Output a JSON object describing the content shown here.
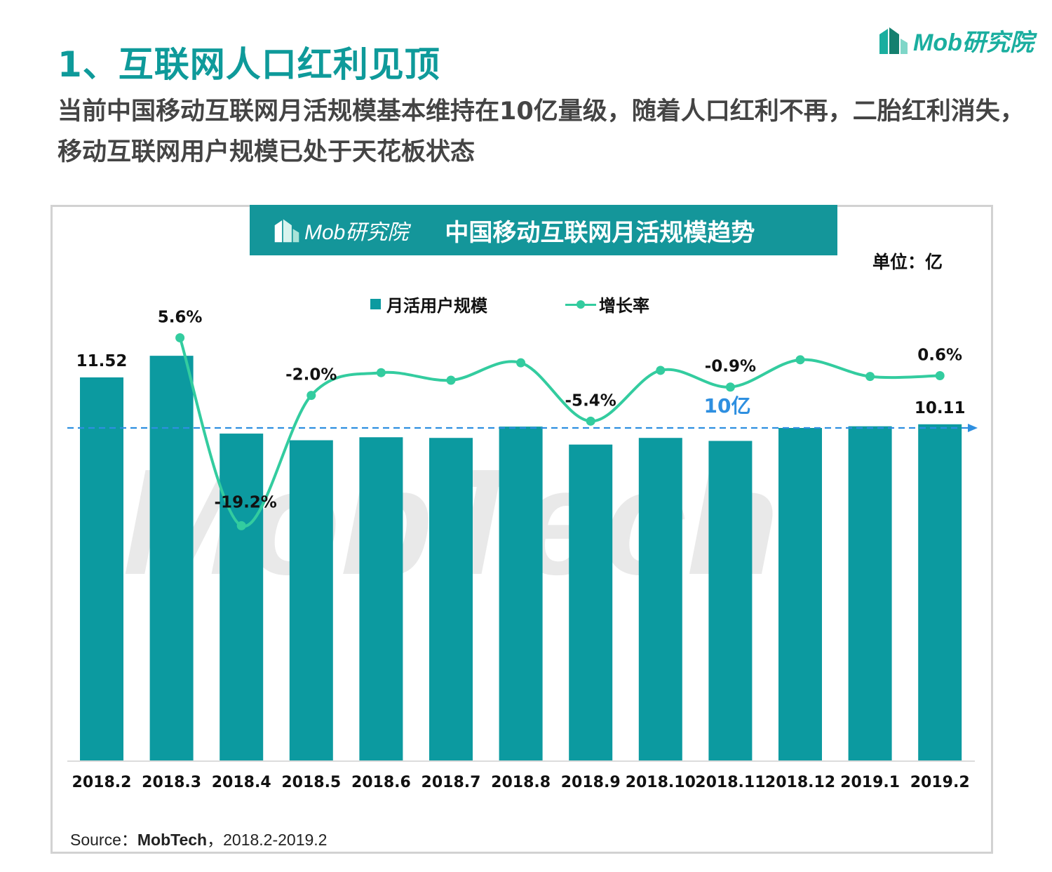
{
  "header": {
    "title": "1、互联网人口红利见顶",
    "logo_text": "Mob研究院",
    "subtitle": "当前中国移动互联网月活规模基本维持在10亿量级，随着人口红利不再，二胎红利消失，移动互联网用户规模已处于天花板状态"
  },
  "chart_panel": {
    "banner_logo_text": "Mob研究院",
    "banner_title": "中国移动互联网月活规模趋势",
    "unit_label": "单位：亿",
    "watermark_text": "MobTech",
    "reference_line_label": "10亿"
  },
  "legend": {
    "bar_label": "月活用户规模",
    "line_label": "增长率"
  },
  "colors": {
    "bar": "#0C9AA0",
    "line": "#33CC9F",
    "reference_line": "#2E8FE0",
    "title": "#0E9A9A",
    "banner": "#14969A"
  },
  "source": {
    "prefix": "Source：",
    "bold": "MobTech",
    "suffix": "，2018.2-2019.2"
  },
  "chart_data": {
    "type": "bar",
    "title": "中国移动互联网月活规模趋势",
    "ylabel": "单位：亿",
    "categories": [
      "2018.2",
      "2018.3",
      "2018.4",
      "2018.5",
      "2018.6",
      "2018.7",
      "2018.8",
      "2018.9",
      "2018.10",
      "2018.11",
      "2018.12",
      "2019.1",
      "2019.2"
    ],
    "series": [
      {
        "name": "月活用户规模",
        "type": "bar",
        "values": [
          11.52,
          12.17,
          9.83,
          9.63,
          9.72,
          9.7,
          10.04,
          9.5,
          9.7,
          9.61,
          10.0,
          10.05,
          10.11
        ],
        "value_labels": [
          "11.52",
          "",
          "",
          "",
          "",
          "",
          "",
          "",
          "",
          "",
          "",
          "",
          "10.11"
        ]
      },
      {
        "name": "增长率",
        "type": "line",
        "values": [
          null,
          5.6,
          -19.2,
          -2.0,
          1.0,
          0.0,
          2.3,
          -5.4,
          1.3,
          -0.9,
          2.7,
          0.5,
          0.6
        ],
        "value_labels": [
          "",
          "5.6%",
          "-19.2%",
          "-2.0%",
          "",
          "",
          "",
          "-5.4%",
          "",
          "-0.9%",
          "",
          "",
          "0.6%"
        ]
      }
    ],
    "reference_line": {
      "value": 10,
      "label": "10亿"
    },
    "legend_position": "top-center",
    "grid": false
  }
}
